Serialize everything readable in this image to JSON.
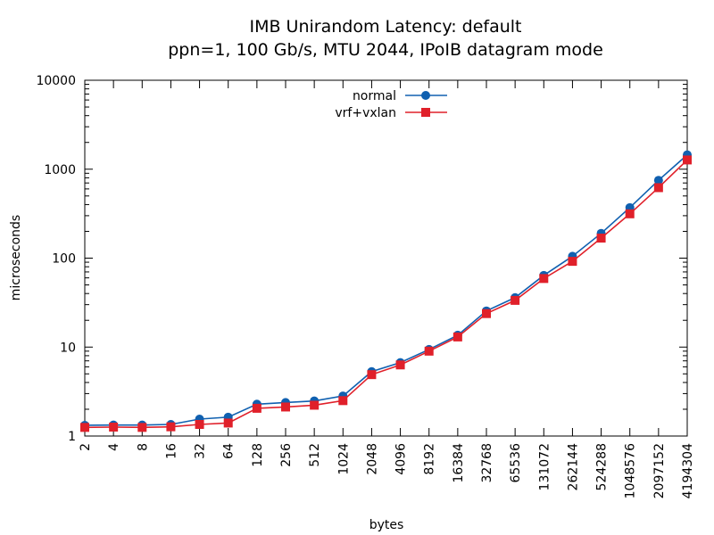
{
  "chart_data": {
    "type": "line",
    "title": "IMB Unirandom Latency: default",
    "subtitle": "ppn=1, 100 Gb/s, MTU 2044, IPoIB datagram mode",
    "xlabel": "bytes",
    "ylabel": "microseconds",
    "xscale": "log2",
    "yscale": "log10",
    "xlim": [
      2,
      4194304
    ],
    "ylim": [
      1,
      10000
    ],
    "x": [
      2,
      4,
      8,
      16,
      32,
      64,
      128,
      256,
      512,
      1024,
      2048,
      4096,
      8192,
      16384,
      32768,
      65536,
      131072,
      262144,
      524288,
      1048576,
      2097152,
      4194304
    ],
    "x_tick_labels": [
      "2",
      "4",
      "8",
      "16",
      "32",
      "64",
      "128",
      "256",
      "512",
      "1024",
      "2048",
      "4096",
      "8192",
      "16384",
      "32768",
      "65536",
      "131072",
      "262144",
      "524288",
      "1048576",
      "2097152",
      "4194304"
    ],
    "y_tick_labels": [
      "1",
      "10",
      "100",
      "1000",
      "10000"
    ],
    "legend_position": "top-center",
    "series": [
      {
        "name": "normal",
        "color": "#1060b0",
        "marker": "circle",
        "values": [
          1.32,
          1.33,
          1.33,
          1.35,
          1.55,
          1.63,
          2.28,
          2.38,
          2.48,
          2.82,
          5.3,
          6.7,
          9.4,
          13.6,
          25.5,
          36.0,
          64.0,
          105.0,
          190.0,
          370.0,
          750.0,
          1450.0
        ]
      },
      {
        "name": "vrf+vxlan",
        "color": "#e0202a",
        "marker": "square",
        "values": [
          1.25,
          1.26,
          1.25,
          1.27,
          1.35,
          1.4,
          2.05,
          2.12,
          2.22,
          2.5,
          4.9,
          6.3,
          9.0,
          13.0,
          23.8,
          33.5,
          59.0,
          92.0,
          168.0,
          315.0,
          620.0,
          1270.0
        ]
      }
    ]
  }
}
